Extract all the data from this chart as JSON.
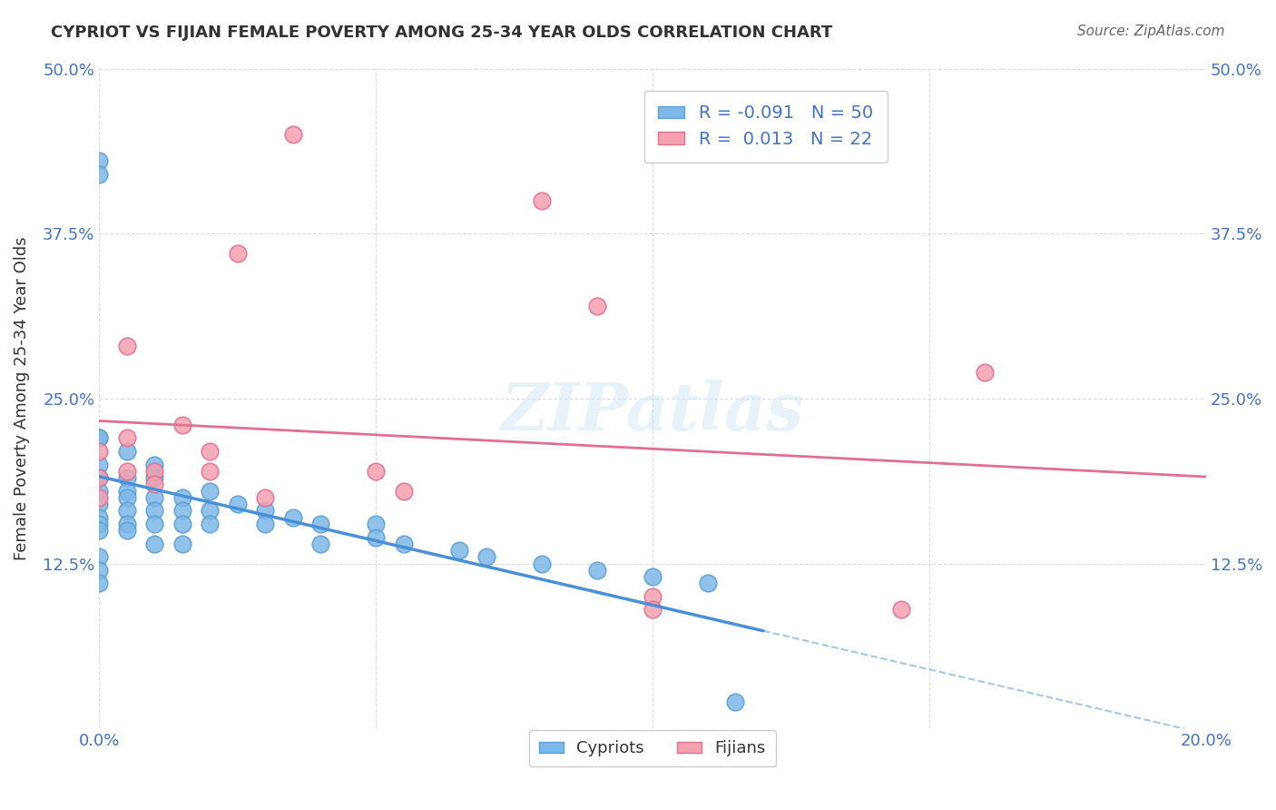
{
  "title": "CYPRIOT VS FIJIAN FEMALE POVERTY AMONG 25-34 YEAR OLDS CORRELATION CHART",
  "source": "Source: ZipAtlas.com",
  "ylabel": "Female Poverty Among 25-34 Year Olds",
  "xlabel": "",
  "xlim": [
    0.0,
    0.2
  ],
  "ylim": [
    0.0,
    0.5
  ],
  "xticks": [
    0.0,
    0.05,
    0.1,
    0.15,
    0.2
  ],
  "yticks": [
    0.0,
    0.125,
    0.25,
    0.375,
    0.5
  ],
  "xtick_labels": [
    "0.0%",
    "",
    "",
    "",
    "20.0%"
  ],
  "ytick_labels": [
    "",
    "12.5%",
    "25.0%",
    "37.5%",
    "50.0%"
  ],
  "cypriot_color": "#7eb8e8",
  "fijian_color": "#f4a0b0",
  "cypriot_edge": "#5a9fd4",
  "fijian_edge": "#e07090",
  "trend_blue": "#4a90d9",
  "trend_pink": "#e07090",
  "R_cypriot": -0.091,
  "N_cypriot": 50,
  "R_fijian": 0.013,
  "N_fijian": 22,
  "cypriot_x": [
    0.0,
    0.0,
    0.0,
    0.0,
    0.0,
    0.0,
    0.0,
    0.0,
    0.0,
    0.0,
    0.0,
    0.0,
    0.0,
    0.0,
    0.005,
    0.005,
    0.005,
    0.005,
    0.005,
    0.005,
    0.005,
    0.01,
    0.01,
    0.01,
    0.01,
    0.01,
    0.01,
    0.015,
    0.015,
    0.015,
    0.015,
    0.02,
    0.02,
    0.02,
    0.025,
    0.03,
    0.03,
    0.035,
    0.04,
    0.04,
    0.05,
    0.05,
    0.055,
    0.065,
    0.07,
    0.08,
    0.09,
    0.1,
    0.11,
    0.115
  ],
  "cypriot_y": [
    0.43,
    0.42,
    0.22,
    0.22,
    0.2,
    0.19,
    0.18,
    0.17,
    0.16,
    0.155,
    0.15,
    0.13,
    0.12,
    0.11,
    0.21,
    0.19,
    0.18,
    0.175,
    0.165,
    0.155,
    0.15,
    0.2,
    0.19,
    0.175,
    0.165,
    0.155,
    0.14,
    0.175,
    0.165,
    0.155,
    0.14,
    0.18,
    0.165,
    0.155,
    0.17,
    0.165,
    0.155,
    0.16,
    0.155,
    0.14,
    0.155,
    0.145,
    0.14,
    0.135,
    0.13,
    0.125,
    0.12,
    0.115,
    0.11,
    0.02
  ],
  "fijian_x": [
    0.0,
    0.0,
    0.0,
    0.005,
    0.005,
    0.005,
    0.01,
    0.01,
    0.015,
    0.02,
    0.02,
    0.025,
    0.03,
    0.035,
    0.05,
    0.055,
    0.08,
    0.09,
    0.1,
    0.1,
    0.145,
    0.16
  ],
  "fijian_y": [
    0.21,
    0.19,
    0.175,
    0.29,
    0.22,
    0.195,
    0.195,
    0.185,
    0.23,
    0.21,
    0.195,
    0.36,
    0.175,
    0.45,
    0.195,
    0.18,
    0.4,
    0.32,
    0.1,
    0.09,
    0.09,
    0.27
  ],
  "watermark": "ZIPatlas",
  "background_color": "#ffffff",
  "grid_color": "#cccccc"
}
